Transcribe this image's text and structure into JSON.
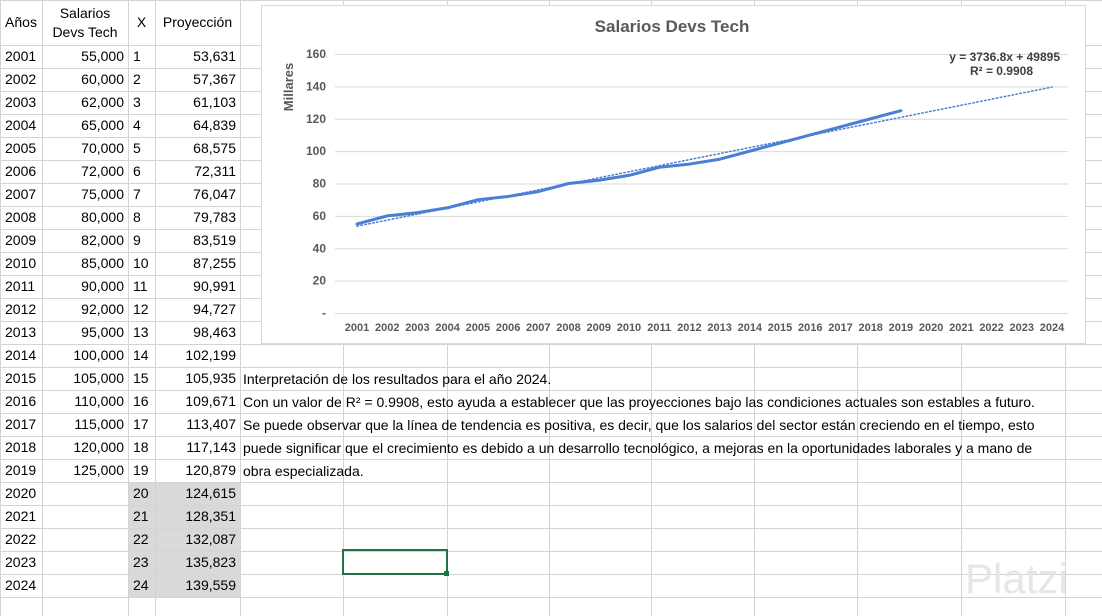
{
  "table": {
    "header": [
      "Años",
      "Salarios Devs Tech",
      "X",
      "Proyección"
    ],
    "rows": [
      [
        "2001",
        "55,000",
        "1",
        "53,631"
      ],
      [
        "2002",
        "60,000",
        "2",
        "57,367"
      ],
      [
        "2003",
        "62,000",
        "3",
        "61,103"
      ],
      [
        "2004",
        "65,000",
        "4",
        "64,839"
      ],
      [
        "2005",
        "70,000",
        "5",
        "68,575"
      ],
      [
        "2006",
        "72,000",
        "6",
        "72,311"
      ],
      [
        "2007",
        "75,000",
        "7",
        "76,047"
      ],
      [
        "2008",
        "80,000",
        "8",
        "79,783"
      ],
      [
        "2009",
        "82,000",
        "9",
        "83,519"
      ],
      [
        "2010",
        "85,000",
        "10",
        "87,255"
      ],
      [
        "2011",
        "90,000",
        "11",
        "90,991"
      ],
      [
        "2012",
        "92,000",
        "12",
        "94,727"
      ],
      [
        "2013",
        "95,000",
        "13",
        "98,463"
      ],
      [
        "2014",
        "100,000",
        "14",
        "102,199"
      ],
      [
        "2015",
        "105,000",
        "15",
        "105,935"
      ],
      [
        "2016",
        "110,000",
        "16",
        "109,671"
      ],
      [
        "2017",
        "115,000",
        "17",
        "113,407"
      ],
      [
        "2018",
        "120,000",
        "18",
        "117,143"
      ],
      [
        "2019",
        "125,000",
        "19",
        "120,879"
      ],
      [
        "2020",
        null,
        "20",
        "124,615"
      ],
      [
        "2021",
        null,
        "21",
        "128,351"
      ],
      [
        "2022",
        null,
        "22",
        "132,087"
      ],
      [
        "2023",
        null,
        "23",
        "135,823"
      ],
      [
        "2024",
        null,
        "24",
        "139,559"
      ]
    ]
  },
  "notes": [
    "Interpretación de los resultados para el año 2024.",
    "Con un valor de R² = 0.9908, esto ayuda a establecer que las proyecciones bajo las condiciones actuales son estables a futuro.",
    "Se puede observar que la línea de tendencia es positiva, es decir, que los salarios del sector están creciendo en el tiempo, esto",
    "puede significar que el crecimiento es debido a un desarrollo tecnológico, a mejoras en la oportunidades laborales y a mano de",
    "obra especializada."
  ],
  "watermark": "Platzi",
  "chart_data": {
    "type": "line",
    "title": "Salarios Devs Tech",
    "y_label": "Millares",
    "categories": [
      "2001",
      "2002",
      "2003",
      "2004",
      "2005",
      "2006",
      "2007",
      "2008",
      "2009",
      "2010",
      "2011",
      "2012",
      "2013",
      "2014",
      "2015",
      "2016",
      "2017",
      "2018",
      "2019",
      "2020",
      "2021",
      "2022",
      "2023",
      "2024"
    ],
    "series": [
      {
        "color": "#4a7fd4",
        "style": "solid",
        "values": [
          55,
          60,
          62,
          65,
          70,
          72,
          75,
          80,
          82,
          85,
          90,
          92,
          95,
          100,
          105,
          110,
          115,
          120,
          125,
          null,
          null,
          null,
          null,
          null
        ]
      },
      {
        "color": "#4a7fd4",
        "style": "dotted",
        "values": [
          53.631,
          57.367,
          61.103,
          64.839,
          68.575,
          72.311,
          76.047,
          79.783,
          83.519,
          87.255,
          90.991,
          94.727,
          98.463,
          102.199,
          105.935,
          109.671,
          113.407,
          117.143,
          120.879,
          124.615,
          128.351,
          132.087,
          135.823,
          139.559
        ]
      }
    ],
    "annotations": [
      "y = 3736.8x + 49895",
      "R² = 0.9908"
    ],
    "ylim": [
      0,
      160
    ],
    "yticks": [
      {
        "value": 0,
        "label": "-"
      },
      20,
      40,
      60,
      80,
      100,
      120,
      140,
      160
    ],
    "grid": true
  }
}
